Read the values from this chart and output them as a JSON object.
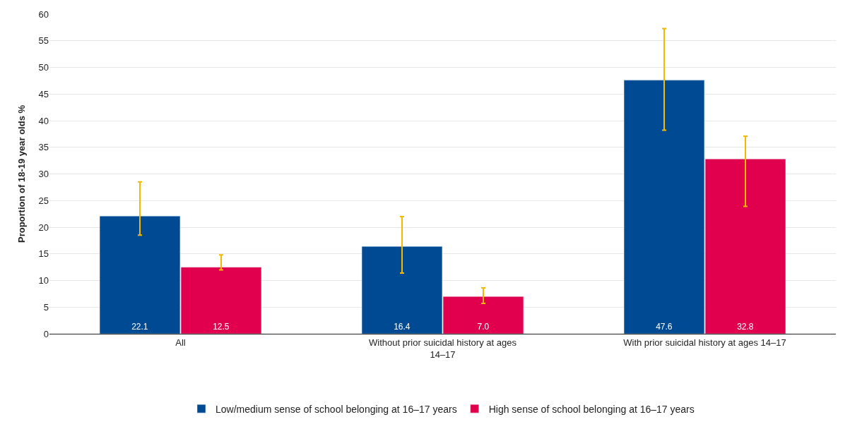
{
  "chart_data": {
    "type": "bar",
    "ylabel": "Proportion of 18-19 year olds %",
    "categories": [
      "All",
      "Without prior suicidal history at ages 14–17",
      "With prior suicidal history at ages 14–17"
    ],
    "series": [
      {
        "name": "Low/medium sense of school belonging at 16–17 years",
        "color": "#004a93",
        "values": [
          22.1,
          16.4,
          47.6
        ],
        "value_labels": [
          "22.1",
          "16.4",
          "47.6"
        ],
        "errors": [
          [
            18.5,
            28.5
          ],
          [
            11.4,
            22.0
          ],
          [
            38.2,
            57.3
          ]
        ]
      },
      {
        "name": "High sense of school belonging at 16–17 years",
        "color": "#e0004d",
        "values": [
          12.5,
          7.0,
          32.8
        ],
        "value_labels": [
          "12.5",
          "7.0",
          "32.8"
        ],
        "errors": [
          [
            12.0,
            14.8
          ],
          [
            5.7,
            8.6
          ],
          [
            23.9,
            37.1
          ]
        ]
      }
    ],
    "ylim": [
      0,
      60
    ],
    "yticks": [
      0,
      5,
      10,
      15,
      20,
      25,
      30,
      35,
      40,
      45,
      50,
      55,
      60
    ],
    "grid": "y",
    "legend": "bottom"
  }
}
